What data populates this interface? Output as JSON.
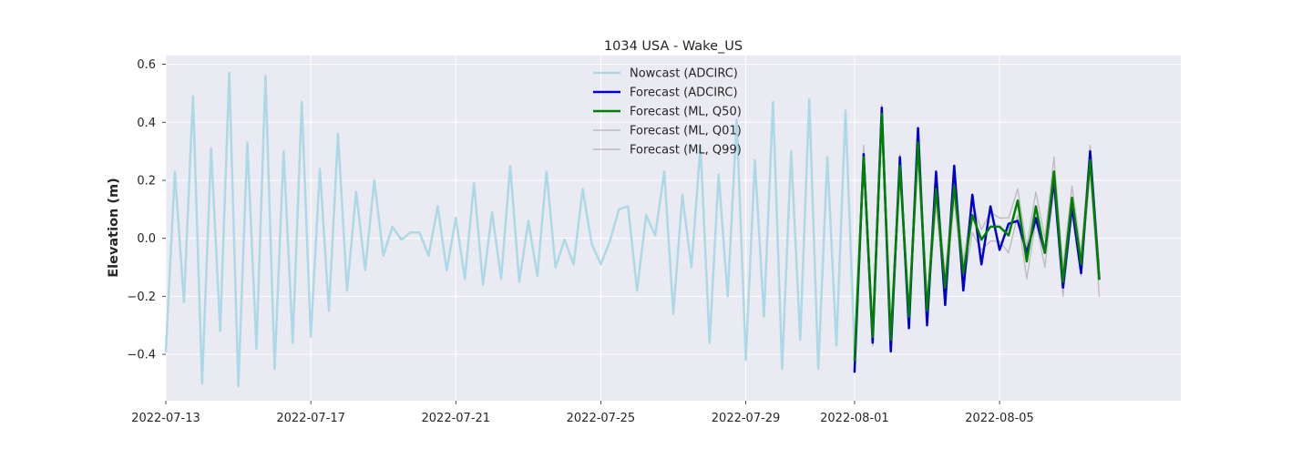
{
  "chart_data": {
    "type": "line",
    "title": "1034 USA - Wake_US",
    "xlabel": "",
    "ylabel": "Elevation (m)",
    "xlim": [
      "2022-07-13T00:00",
      "2022-08-10T00:00"
    ],
    "ylim": [
      -0.56,
      0.63
    ],
    "x_ticks": [
      "2022-07-13",
      "2022-07-17",
      "2022-07-21",
      "2022-07-25",
      "2022-07-29",
      "2022-08-01",
      "2022-08-05"
    ],
    "y_ticks": [
      -0.4,
      -0.2,
      0.0,
      0.2,
      0.4,
      0.6
    ],
    "y_tick_labels": [
      "−0.4",
      "−0.2",
      "0.0",
      "0.2",
      "0.4",
      "0.6"
    ],
    "grid": true,
    "legend_position": "top-center",
    "series": [
      {
        "name": "Nowcast (ADCIRC)",
        "color": "#add8e6",
        "width": 2.5,
        "x": [
          "2022-07-13T00:00",
          "2022-07-13T06:00",
          "2022-07-13T12:00",
          "2022-07-13T18:00",
          "2022-07-14T00:00",
          "2022-07-14T06:00",
          "2022-07-14T12:00",
          "2022-07-14T18:00",
          "2022-07-15T00:00",
          "2022-07-15T06:00",
          "2022-07-15T12:00",
          "2022-07-15T18:00",
          "2022-07-16T00:00",
          "2022-07-16T06:00",
          "2022-07-16T12:00",
          "2022-07-16T18:00",
          "2022-07-17T00:00",
          "2022-07-17T06:00",
          "2022-07-17T12:00",
          "2022-07-17T18:00",
          "2022-07-18T00:00",
          "2022-07-18T06:00",
          "2022-07-18T12:00",
          "2022-07-18T18:00",
          "2022-07-19T00:00",
          "2022-07-19T06:00",
          "2022-07-19T12:00",
          "2022-07-19T18:00",
          "2022-07-20T00:00",
          "2022-07-20T06:00",
          "2022-07-20T12:00",
          "2022-07-20T18:00",
          "2022-07-21T00:00",
          "2022-07-21T06:00",
          "2022-07-21T12:00",
          "2022-07-21T18:00",
          "2022-07-22T00:00",
          "2022-07-22T06:00",
          "2022-07-22T12:00",
          "2022-07-22T18:00",
          "2022-07-23T00:00",
          "2022-07-23T06:00",
          "2022-07-23T12:00",
          "2022-07-23T18:00",
          "2022-07-24T00:00",
          "2022-07-24T06:00",
          "2022-07-24T12:00",
          "2022-07-24T18:00",
          "2022-07-25T00:00",
          "2022-07-25T06:00",
          "2022-07-25T12:00",
          "2022-07-25T18:00",
          "2022-07-26T00:00",
          "2022-07-26T06:00",
          "2022-07-26T12:00",
          "2022-07-26T18:00",
          "2022-07-27T00:00",
          "2022-07-27T06:00",
          "2022-07-27T12:00",
          "2022-07-27T18:00",
          "2022-07-28T00:00",
          "2022-07-28T06:00",
          "2022-07-28T12:00",
          "2022-07-28T18:00",
          "2022-07-29T00:00",
          "2022-07-29T06:00",
          "2022-07-29T12:00",
          "2022-07-29T18:00",
          "2022-07-30T00:00",
          "2022-07-30T06:00",
          "2022-07-30T12:00",
          "2022-07-30T18:00",
          "2022-07-31T00:00",
          "2022-07-31T06:00",
          "2022-07-31T12:00",
          "2022-07-31T18:00",
          "2022-08-01T00:00",
          "2022-08-01T06:00"
        ],
        "y": [
          -0.39,
          0.23,
          -0.22,
          0.49,
          -0.5,
          0.31,
          -0.32,
          0.57,
          -0.51,
          0.33,
          -0.38,
          0.56,
          -0.45,
          0.3,
          -0.36,
          0.47,
          -0.34,
          0.24,
          -0.25,
          0.36,
          -0.18,
          0.16,
          -0.11,
          0.2,
          -0.06,
          0.04,
          -0.005,
          0.02,
          0.02,
          -0.06,
          0.11,
          -0.11,
          0.07,
          -0.14,
          0.19,
          -0.16,
          0.09,
          -0.14,
          0.25,
          -0.15,
          0.06,
          -0.13,
          0.23,
          -0.1,
          -0.005,
          -0.09,
          0.17,
          -0.02,
          -0.09,
          -0.01,
          0.1,
          0.11,
          -0.18,
          0.08,
          0.01,
          0.23,
          -0.26,
          0.15,
          -0.1,
          0.32,
          -0.36,
          0.22,
          -0.2,
          0.41,
          -0.42,
          0.27,
          -0.27,
          0.47,
          -0.45,
          0.3,
          -0.35,
          0.48,
          -0.45,
          0.28,
          -0.37,
          0.44,
          -0.39,
          0.28
        ]
      },
      {
        "name": "Forecast (ADCIRC)",
        "color": "#0000cc",
        "width": 2.5,
        "x": [
          "2022-08-01T00:00",
          "2022-08-01T06:00",
          "2022-08-01T12:00",
          "2022-08-01T18:00",
          "2022-08-02T00:00",
          "2022-08-02T06:00",
          "2022-08-02T12:00",
          "2022-08-02T18:00",
          "2022-08-03T00:00",
          "2022-08-03T06:00",
          "2022-08-03T12:00",
          "2022-08-03T18:00",
          "2022-08-04T00:00",
          "2022-08-04T06:00",
          "2022-08-04T12:00",
          "2022-08-04T18:00",
          "2022-08-05T00:00",
          "2022-08-05T06:00",
          "2022-08-05T12:00",
          "2022-08-05T18:00",
          "2022-08-06T00:00",
          "2022-08-06T06:00",
          "2022-08-06T12:00",
          "2022-08-06T18:00",
          "2022-08-07T00:00",
          "2022-08-07T06:00",
          "2022-08-07T12:00",
          "2022-08-07T18:00"
        ],
        "y": [
          -0.46,
          0.29,
          -0.36,
          0.45,
          -0.39,
          0.28,
          -0.31,
          0.38,
          -0.3,
          0.23,
          -0.23,
          0.25,
          -0.18,
          0.15,
          -0.09,
          0.11,
          -0.04,
          0.05,
          0.06,
          -0.05,
          0.07,
          -0.05,
          0.2,
          -0.17,
          0.11,
          -0.12,
          0.3,
          -0.14
        ]
      },
      {
        "name": "Forecast (ML, Q50)",
        "color": "#008000",
        "width": 2.5,
        "x": [
          "2022-08-01T00:00",
          "2022-08-01T06:00",
          "2022-08-01T12:00",
          "2022-08-01T18:00",
          "2022-08-02T00:00",
          "2022-08-02T06:00",
          "2022-08-02T12:00",
          "2022-08-02T18:00",
          "2022-08-03T00:00",
          "2022-08-03T06:00",
          "2022-08-03T12:00",
          "2022-08-03T18:00",
          "2022-08-04T00:00",
          "2022-08-04T06:00",
          "2022-08-04T12:00",
          "2022-08-04T18:00",
          "2022-08-05T00:00",
          "2022-08-05T06:00",
          "2022-08-05T12:00",
          "2022-08-05T18:00",
          "2022-08-06T00:00",
          "2022-08-06T06:00",
          "2022-08-06T12:00",
          "2022-08-06T18:00",
          "2022-08-07T00:00",
          "2022-08-07T06:00",
          "2022-08-07T12:00",
          "2022-08-07T18:00"
        ],
        "y": [
          -0.42,
          0.28,
          -0.34,
          0.43,
          -0.35,
          0.25,
          -0.27,
          0.33,
          -0.25,
          0.17,
          -0.17,
          0.18,
          -0.12,
          0.08,
          -0.005,
          0.04,
          0.04,
          0.01,
          0.13,
          -0.08,
          0.11,
          -0.05,
          0.23,
          -0.15,
          0.14,
          -0.09,
          0.27,
          -0.14
        ]
      },
      {
        "name": "Forecast (ML, Q01)",
        "color": "#bdbdbd",
        "width": 1.4,
        "x": [
          "2022-08-01T00:00",
          "2022-08-01T06:00",
          "2022-08-01T12:00",
          "2022-08-01T18:00",
          "2022-08-02T00:00",
          "2022-08-02T06:00",
          "2022-08-02T12:00",
          "2022-08-02T18:00",
          "2022-08-03T00:00",
          "2022-08-03T06:00",
          "2022-08-03T12:00",
          "2022-08-03T18:00",
          "2022-08-04T00:00",
          "2022-08-04T06:00",
          "2022-08-04T12:00",
          "2022-08-04T18:00",
          "2022-08-05T00:00",
          "2022-08-05T06:00",
          "2022-08-05T12:00",
          "2022-08-05T18:00",
          "2022-08-06T00:00",
          "2022-08-06T06:00",
          "2022-08-06T12:00",
          "2022-08-06T18:00",
          "2022-08-07T00:00",
          "2022-08-07T06:00",
          "2022-08-07T12:00",
          "2022-08-07T18:00"
        ],
        "y": [
          -0.44,
          0.24,
          -0.37,
          0.4,
          -0.38,
          0.21,
          -0.3,
          0.28,
          -0.29,
          0.12,
          -0.21,
          0.13,
          -0.16,
          0.02,
          -0.04,
          -0.01,
          -0.01,
          -0.05,
          0.08,
          -0.14,
          0.06,
          -0.1,
          0.17,
          -0.2,
          0.08,
          -0.13,
          0.23,
          -0.2
        ]
      },
      {
        "name": "Forecast (ML, Q99)",
        "color": "#bdbdbd",
        "width": 1.4,
        "x": [
          "2022-08-01T00:00",
          "2022-08-01T06:00",
          "2022-08-01T12:00",
          "2022-08-01T18:00",
          "2022-08-02T00:00",
          "2022-08-02T06:00",
          "2022-08-02T12:00",
          "2022-08-02T18:00",
          "2022-08-03T00:00",
          "2022-08-03T06:00",
          "2022-08-03T12:00",
          "2022-08-03T18:00",
          "2022-08-04T00:00",
          "2022-08-04T06:00",
          "2022-08-04T12:00",
          "2022-08-04T18:00",
          "2022-08-05T00:00",
          "2022-08-05T06:00",
          "2022-08-05T12:00",
          "2022-08-05T18:00",
          "2022-08-06T00:00",
          "2022-08-06T06:00",
          "2022-08-06T12:00",
          "2022-08-06T18:00",
          "2022-08-07T00:00",
          "2022-08-07T06:00",
          "2022-08-07T12:00",
          "2022-08-07T18:00"
        ],
        "y": [
          -0.4,
          0.32,
          -0.31,
          0.46,
          -0.32,
          0.29,
          -0.24,
          0.37,
          -0.21,
          0.21,
          -0.13,
          0.22,
          -0.08,
          0.12,
          0.03,
          0.09,
          0.07,
          0.07,
          0.17,
          -0.03,
          0.16,
          0.0,
          0.28,
          -0.1,
          0.18,
          -0.05,
          0.32,
          -0.09
        ]
      }
    ]
  }
}
